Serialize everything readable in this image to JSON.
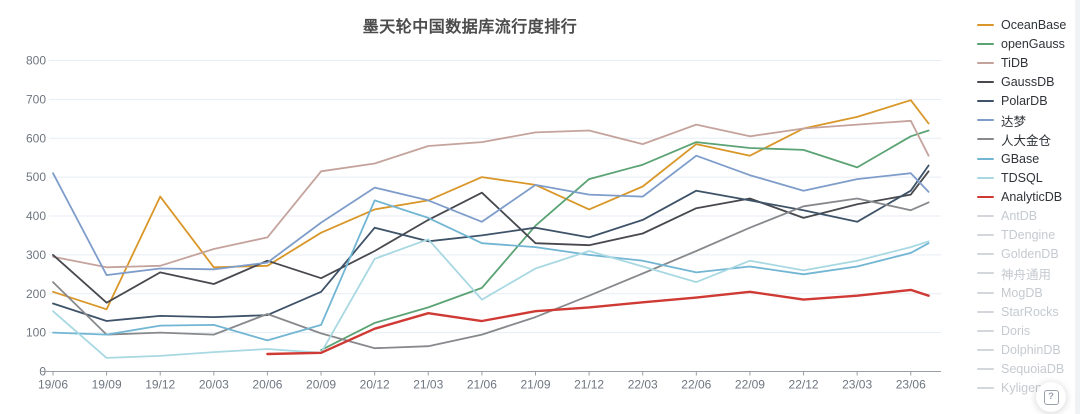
{
  "page": {
    "help_label": "?"
  },
  "chart_data": {
    "type": "line",
    "title": "墨天轮中国数据库流行度排行",
    "xlabel": "",
    "ylabel": "",
    "ylim": [
      0,
      800
    ],
    "y_ticks": [
      0,
      100,
      200,
      300,
      400,
      500,
      600,
      700,
      800
    ],
    "grid": true,
    "legend_position": "right",
    "x_tick_labels": [
      "19/06",
      "19/09",
      "19/12",
      "20/03",
      "20/06",
      "20/09",
      "20/12",
      "21/03",
      "21/06",
      "21/09",
      "21/12",
      "22/03",
      "22/06",
      "22/09",
      "22/12",
      "23/03",
      "23/06"
    ],
    "month_offsets": [
      0,
      3,
      6,
      9,
      12,
      15,
      18,
      21,
      24,
      27,
      30,
      33,
      36,
      39,
      42,
      45,
      48,
      49
    ],
    "series": [
      {
        "name": "OceanBase",
        "color": "#d99729",
        "highlighted": false,
        "values": [
          205,
          160,
          450,
          268,
          272,
          357,
          417,
          440,
          500,
          480,
          417,
          476,
          585,
          555,
          625,
          655,
          698,
          638
        ]
      },
      {
        "name": "openGauss",
        "color": "#5ba374",
        "highlighted": false,
        "values": [
          null,
          null,
          null,
          null,
          null,
          55,
          125,
          165,
          215,
          375,
          495,
          532,
          590,
          575,
          570,
          525,
          605,
          620
        ]
      },
      {
        "name": "TiDB",
        "color": "#c5a39d",
        "highlighted": false,
        "values": [
          295,
          268,
          272,
          315,
          345,
          515,
          535,
          580,
          590,
          615,
          620,
          585,
          635,
          605,
          625,
          635,
          645,
          555
        ]
      },
      {
        "name": "GaussDB",
        "color": "#47494e",
        "highlighted": false,
        "values": [
          300,
          177,
          255,
          225,
          285,
          240,
          310,
          390,
          460,
          330,
          325,
          355,
          420,
          445,
          395,
          430,
          455,
          515
        ]
      },
      {
        "name": "PolarDB",
        "color": "#3e5268",
        "highlighted": false,
        "values": [
          175,
          130,
          143,
          140,
          145,
          205,
          370,
          335,
          350,
          370,
          345,
          390,
          465,
          440,
          415,
          385,
          465,
          530
        ]
      },
      {
        "name": "达梦",
        "color": "#7f9dca",
        "highlighted": false,
        "values": [
          510,
          248,
          265,
          263,
          280,
          383,
          473,
          440,
          385,
          480,
          455,
          450,
          555,
          505,
          465,
          495,
          510,
          462
        ]
      },
      {
        "name": "人大金仓",
        "color": "#87898c",
        "highlighted": false,
        "values": [
          230,
          95,
          100,
          95,
          148,
          98,
          60,
          65,
          95,
          140,
          195,
          252,
          310,
          370,
          425,
          445,
          415,
          435
        ]
      },
      {
        "name": "GBase",
        "color": "#72b6d4",
        "highlighted": false,
        "values": [
          100,
          95,
          118,
          120,
          80,
          120,
          440,
          395,
          330,
          320,
          300,
          285,
          255,
          270,
          250,
          270,
          305,
          330
        ]
      },
      {
        "name": "TDSQL",
        "color": "#a8d8e2",
        "highlighted": false,
        "values": [
          155,
          35,
          40,
          50,
          58,
          48,
          290,
          340,
          185,
          265,
          310,
          270,
          230,
          285,
          260,
          285,
          320,
          335
        ]
      },
      {
        "name": "AnalyticDB",
        "color": "#d03a34",
        "highlighted": true,
        "values": [
          null,
          null,
          null,
          null,
          45,
          48,
          110,
          150,
          130,
          155,
          165,
          178,
          190,
          205,
          185,
          195,
          210,
          195
        ]
      }
    ],
    "disabled_series": [
      "AntDB",
      "TDengine",
      "GoldenDB",
      "神舟通用",
      "MogDB",
      "StarRocks",
      "Doris",
      "DolphinDB",
      "SequoiaDB",
      "Kyligence"
    ],
    "colors": {
      "grid_line": "#e6edf4",
      "axis_line": "#9aa0a6",
      "axis_text": "#6f7680",
      "title_text": "#4c4c4c",
      "legend_text": "#2f3338",
      "legend_disabled_text": "#c5cacf"
    }
  }
}
